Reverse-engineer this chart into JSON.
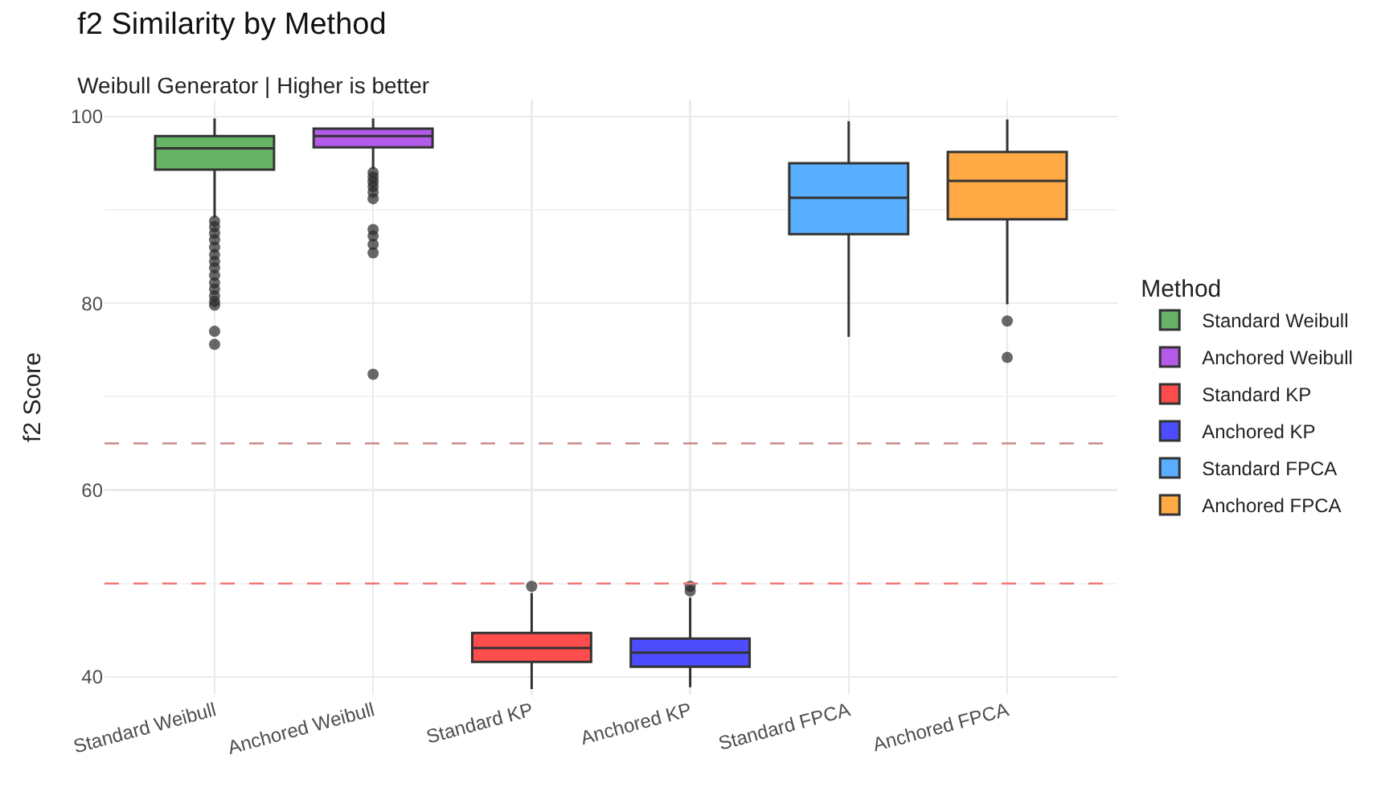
{
  "chart_data": {
    "type": "box",
    "title": "f2 Similarity by Method",
    "subtitle": "Weibull Generator | Higher is better",
    "ylabel": "f2 Score",
    "legend_title": "Method",
    "categories": [
      "Standard Weibull",
      "Anchored Weibull",
      "Standard KP",
      "Anchored KP",
      "Standard FPCA",
      "Anchored FPCA"
    ],
    "series": [
      {
        "name": "Standard Weibull",
        "color": "#66b366",
        "x": [
          "Standard Weibull"
        ],
        "boxes": [
          {
            "low": 89.2,
            "q1": 94.3,
            "median": 96.6,
            "q3": 97.9,
            "high": 99.8,
            "outliers": [
              88.8,
              88.2,
              87.5,
              86.8,
              86.0,
              85.2,
              84.5,
              83.8,
              83.0,
              82.2,
              81.5,
              80.8,
              80.2,
              79.8,
              77.0,
              75.6
            ]
          }
        ]
      },
      {
        "name": "Anchored Weibull",
        "color": "#b45ae8",
        "x": [
          "Anchored Weibull"
        ],
        "boxes": [
          {
            "low": 94.4,
            "q1": 96.7,
            "median": 97.9,
            "q3": 98.7,
            "high": 99.8,
            "outliers": [
              94.0,
              93.5,
              93.0,
              92.5,
              91.9,
              91.2,
              87.9,
              87.2,
              86.3,
              85.4,
              72.4
            ]
          }
        ]
      },
      {
        "name": "Standard KP",
        "color": "#ff4d4d",
        "x": [
          "Standard KP"
        ],
        "boxes": [
          {
            "low": 38.7,
            "q1": 41.6,
            "median": 43.1,
            "q3": 44.7,
            "high": 49.0,
            "outliers": [
              49.7
            ]
          }
        ]
      },
      {
        "name": "Anchored KP",
        "color": "#4d4dff",
        "x": [
          "Anchored KP"
        ],
        "boxes": [
          {
            "low": 38.9,
            "q1": 41.1,
            "median": 42.6,
            "q3": 44.1,
            "high": 48.5,
            "outliers": [
              49.7,
              49.2
            ]
          }
        ]
      },
      {
        "name": "Standard FPCA",
        "color": "#5aaeff",
        "x": [
          "Standard FPCA"
        ],
        "boxes": [
          {
            "low": 76.4,
            "q1": 87.4,
            "median": 91.3,
            "q3": 95.0,
            "high": 99.5
          }
        ]
      },
      {
        "name": "Anchored FPCA",
        "color": "#ffaa44",
        "x": [
          "Anchored FPCA"
        ],
        "boxes": [
          {
            "low": 79.9,
            "q1": 89.0,
            "median": 93.1,
            "q3": 96.2,
            "high": 99.7,
            "outliers": [
              78.1,
              74.2
            ]
          }
        ]
      }
    ],
    "ylim": [
      38.1,
      101.8
    ],
    "yticks": [
      40,
      60,
      80,
      100
    ],
    "grid": true,
    "legend": "right",
    "ref_lines": [
      {
        "axis": "y",
        "value": 65,
        "color": "#c98a8a",
        "line_style": "dashed"
      },
      {
        "axis": "y",
        "value": 50,
        "color": "#f07878",
        "line_style": "dashed"
      }
    ]
  }
}
